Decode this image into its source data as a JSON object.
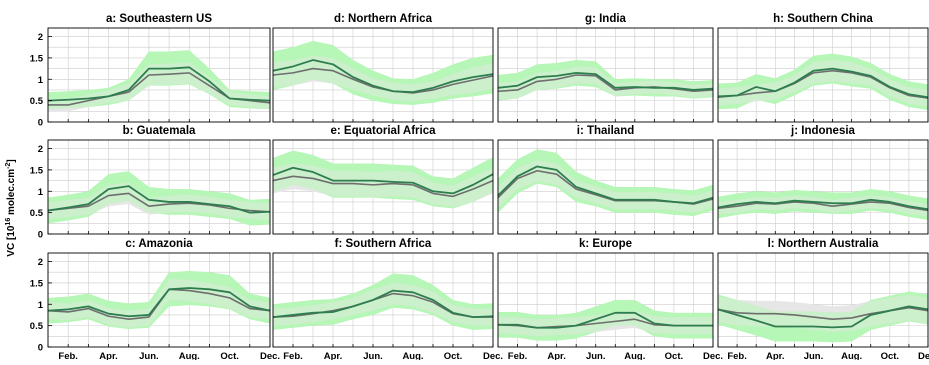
{
  "y_axis_label": "VC [10",
  "y_axis_label_exp1": "16",
  "y_axis_label_mid": " molec.cm",
  "y_axis_label_exp2": "-2",
  "y_axis_label_end": "]",
  "colors": {
    "model_line": "#2e7d4f",
    "model_band": "#b6f5b6",
    "obs_line": "#6e6e6e",
    "obs_band": "#e6e6e6",
    "grid": "#cccccc"
  },
  "chart_data": {
    "type": "line",
    "x": [
      1,
      2,
      3,
      4,
      5,
      6,
      7,
      8,
      9,
      10,
      11,
      12
    ],
    "x_tick_positions": [
      2,
      4,
      6,
      8,
      10,
      12
    ],
    "x_tick_labels": [
      "Feb.",
      "Apr.",
      "Jun.",
      "Aug.",
      "Oct.",
      "Dec."
    ],
    "y_ticks": [
      0,
      0.5,
      1,
      1.5,
      2
    ],
    "y_tick_labels": [
      "0",
      "0.5",
      "1",
      "1.5",
      "2"
    ],
    "ylim": [
      0,
      2.2
    ],
    "xlim": [
      1,
      12
    ],
    "grid": true,
    "panels": [
      {
        "title": "a: Southeastern US",
        "model": [
          0.5,
          0.52,
          0.55,
          0.6,
          0.75,
          1.25,
          1.25,
          1.28,
          0.95,
          0.55,
          0.52,
          0.5
        ],
        "model_band": [
          0.2,
          0.2,
          0.2,
          0.2,
          0.25,
          0.4,
          0.4,
          0.4,
          0.3,
          0.2,
          0.2,
          0.2
        ],
        "obs": [
          0.4,
          0.4,
          0.5,
          0.6,
          0.7,
          1.1,
          1.12,
          1.15,
          0.85,
          0.55,
          0.5,
          0.45
        ],
        "obs_band": [
          0.15,
          0.15,
          0.15,
          0.15,
          0.2,
          0.25,
          0.25,
          0.25,
          0.2,
          0.15,
          0.15,
          0.15
        ]
      },
      {
        "title": "d: Northern Africa",
        "model": [
          1.2,
          1.3,
          1.45,
          1.35,
          1.05,
          0.85,
          0.72,
          0.7,
          0.8,
          0.95,
          1.05,
          1.12
        ],
        "model_band": [
          0.45,
          0.45,
          0.45,
          0.45,
          0.4,
          0.35,
          0.3,
          0.3,
          0.35,
          0.4,
          0.45,
          0.45
        ],
        "obs": [
          1.1,
          1.15,
          1.25,
          1.2,
          1.0,
          0.82,
          0.72,
          0.68,
          0.75,
          0.88,
          0.98,
          1.08
        ],
        "obs_band": [
          0.3,
          0.3,
          0.3,
          0.3,
          0.25,
          0.2,
          0.2,
          0.2,
          0.2,
          0.25,
          0.3,
          0.3
        ]
      },
      {
        "title": "g: India",
        "model": [
          0.8,
          0.85,
          1.05,
          1.08,
          1.15,
          1.12,
          0.8,
          0.82,
          0.8,
          0.8,
          0.75,
          0.78
        ],
        "model_band": [
          0.3,
          0.3,
          0.3,
          0.3,
          0.3,
          0.3,
          0.2,
          0.2,
          0.2,
          0.2,
          0.2,
          0.2
        ],
        "obs": [
          0.72,
          0.75,
          0.95,
          1.0,
          1.1,
          1.08,
          0.75,
          0.8,
          0.82,
          0.78,
          0.72,
          0.75
        ],
        "obs_band": [
          0.2,
          0.2,
          0.2,
          0.2,
          0.2,
          0.2,
          0.15,
          0.15,
          0.15,
          0.15,
          0.15,
          0.15
        ]
      },
      {
        "title": "h: Southern China",
        "model": [
          0.6,
          0.62,
          0.82,
          0.72,
          0.92,
          1.2,
          1.25,
          1.18,
          1.08,
          0.82,
          0.65,
          0.58
        ],
        "model_band": [
          0.3,
          0.3,
          0.3,
          0.3,
          0.3,
          0.35,
          0.35,
          0.35,
          0.3,
          0.3,
          0.3,
          0.3
        ],
        "obs": [
          0.58,
          0.62,
          0.68,
          0.72,
          0.9,
          1.15,
          1.2,
          1.15,
          1.05,
          0.8,
          0.62,
          0.56
        ],
        "obs_band": [
          0.2,
          0.2,
          0.2,
          0.2,
          0.2,
          0.25,
          0.25,
          0.25,
          0.2,
          0.2,
          0.2,
          0.2
        ]
      },
      {
        "title": "b: Guatemala",
        "model": [
          0.55,
          0.62,
          0.7,
          1.05,
          1.12,
          0.8,
          0.75,
          0.75,
          0.7,
          0.65,
          0.5,
          0.52
        ],
        "model_band": [
          0.3,
          0.3,
          0.3,
          0.35,
          0.35,
          0.3,
          0.3,
          0.3,
          0.3,
          0.3,
          0.3,
          0.3
        ],
        "obs": [
          0.55,
          0.6,
          0.65,
          0.9,
          0.95,
          0.65,
          0.7,
          0.72,
          0.68,
          0.6,
          0.55,
          0.52
        ],
        "obs_band": [
          0.2,
          0.2,
          0.2,
          0.25,
          0.25,
          0.2,
          0.2,
          0.2,
          0.2,
          0.2,
          0.2,
          0.2
        ]
      },
      {
        "title": "e: Equatorial Africa",
        "model": [
          1.38,
          1.55,
          1.45,
          1.25,
          1.25,
          1.25,
          1.22,
          1.2,
          1.0,
          0.95,
          1.15,
          1.4
        ],
        "model_band": [
          0.4,
          0.4,
          0.4,
          0.4,
          0.4,
          0.4,
          0.4,
          0.4,
          0.35,
          0.35,
          0.4,
          0.4
        ],
        "obs": [
          1.25,
          1.35,
          1.3,
          1.18,
          1.18,
          1.15,
          1.18,
          1.15,
          0.95,
          0.88,
          1.05,
          1.25
        ],
        "obs_band": [
          0.3,
          0.3,
          0.3,
          0.3,
          0.3,
          0.3,
          0.3,
          0.3,
          0.25,
          0.25,
          0.3,
          0.3
        ]
      },
      {
        "title": "i: Thailand",
        "model": [
          0.9,
          1.35,
          1.58,
          1.5,
          1.1,
          0.95,
          0.8,
          0.8,
          0.8,
          0.75,
          0.72,
          0.85
        ],
        "model_band": [
          0.4,
          0.4,
          0.4,
          0.4,
          0.35,
          0.3,
          0.3,
          0.3,
          0.3,
          0.3,
          0.3,
          0.3
        ],
        "obs": [
          0.85,
          1.3,
          1.48,
          1.4,
          1.05,
          0.92,
          0.78,
          0.78,
          0.78,
          0.75,
          0.7,
          0.82
        ],
        "obs_band": [
          0.25,
          0.25,
          0.25,
          0.25,
          0.2,
          0.2,
          0.2,
          0.2,
          0.2,
          0.2,
          0.2,
          0.2
        ]
      },
      {
        "title": "j: Indonesia",
        "model": [
          0.62,
          0.7,
          0.75,
          0.72,
          0.78,
          0.75,
          0.72,
          0.72,
          0.8,
          0.75,
          0.65,
          0.58
        ],
        "model_band": [
          0.25,
          0.25,
          0.25,
          0.25,
          0.25,
          0.25,
          0.25,
          0.25,
          0.25,
          0.25,
          0.25,
          0.25
        ],
        "obs": [
          0.6,
          0.65,
          0.72,
          0.7,
          0.75,
          0.72,
          0.65,
          0.7,
          0.75,
          0.72,
          0.62,
          0.55
        ],
        "obs_band": [
          0.15,
          0.15,
          0.15,
          0.15,
          0.15,
          0.15,
          0.15,
          0.15,
          0.15,
          0.15,
          0.15,
          0.15
        ]
      },
      {
        "title": "c: Amazonia",
        "model": [
          0.85,
          0.88,
          0.95,
          0.78,
          0.72,
          0.75,
          1.35,
          1.38,
          1.35,
          1.28,
          0.95,
          0.85
        ],
        "model_band": [
          0.3,
          0.3,
          0.3,
          0.3,
          0.3,
          0.3,
          0.4,
          0.4,
          0.4,
          0.4,
          0.3,
          0.3
        ],
        "obs": [
          0.85,
          0.82,
          0.9,
          0.72,
          0.65,
          0.7,
          1.35,
          1.32,
          1.25,
          1.15,
          0.9,
          0.85
        ],
        "obs_band": [
          0.2,
          0.2,
          0.2,
          0.2,
          0.2,
          0.2,
          0.25,
          0.25,
          0.25,
          0.25,
          0.2,
          0.2
        ]
      },
      {
        "title": "f: Southern Africa",
        "model": [
          0.7,
          0.75,
          0.8,
          0.82,
          0.95,
          1.1,
          1.32,
          1.28,
          1.1,
          0.8,
          0.7,
          0.72
        ],
        "model_band": [
          0.3,
          0.3,
          0.3,
          0.3,
          0.3,
          0.35,
          0.4,
          0.4,
          0.35,
          0.3,
          0.3,
          0.3
        ],
        "obs": [
          0.7,
          0.72,
          0.78,
          0.85,
          0.95,
          1.1,
          1.25,
          1.2,
          1.05,
          0.78,
          0.7,
          0.7
        ],
        "obs_band": [
          0.2,
          0.2,
          0.2,
          0.2,
          0.2,
          0.25,
          0.25,
          0.25,
          0.25,
          0.2,
          0.2,
          0.2
        ]
      },
      {
        "title": "k: Europe",
        "model": [
          0.52,
          0.52,
          0.45,
          0.45,
          0.5,
          0.65,
          0.8,
          0.8,
          0.55,
          0.5,
          0.5,
          0.5
        ],
        "model_band": [
          0.3,
          0.3,
          0.3,
          0.3,
          0.3,
          0.3,
          0.3,
          0.3,
          0.3,
          0.3,
          0.3,
          0.3
        ],
        "obs": [
          0.52,
          0.5,
          0.45,
          0.48,
          0.5,
          0.55,
          0.6,
          0.65,
          0.52,
          0.5,
          0.5,
          0.5
        ],
        "obs_band": [
          0.2,
          0.2,
          0.2,
          0.2,
          0.2,
          0.2,
          0.2,
          0.2,
          0.2,
          0.2,
          0.2,
          0.2
        ]
      },
      {
        "title": "l: Northern Australia",
        "model": [
          0.88,
          0.75,
          0.62,
          0.48,
          0.48,
          0.48,
          0.46,
          0.48,
          0.75,
          0.85,
          0.95,
          0.88
        ],
        "model_band": [
          0.35,
          0.35,
          0.35,
          0.35,
          0.35,
          0.35,
          0.35,
          0.35,
          0.35,
          0.35,
          0.35,
          0.35
        ],
        "obs": [
          0.88,
          0.8,
          0.78,
          0.78,
          0.75,
          0.7,
          0.65,
          0.68,
          0.78,
          0.85,
          0.92,
          0.85
        ],
        "obs_band": [
          0.3,
          0.3,
          0.3,
          0.3,
          0.3,
          0.3,
          0.3,
          0.3,
          0.3,
          0.3,
          0.3,
          0.3
        ]
      }
    ]
  }
}
